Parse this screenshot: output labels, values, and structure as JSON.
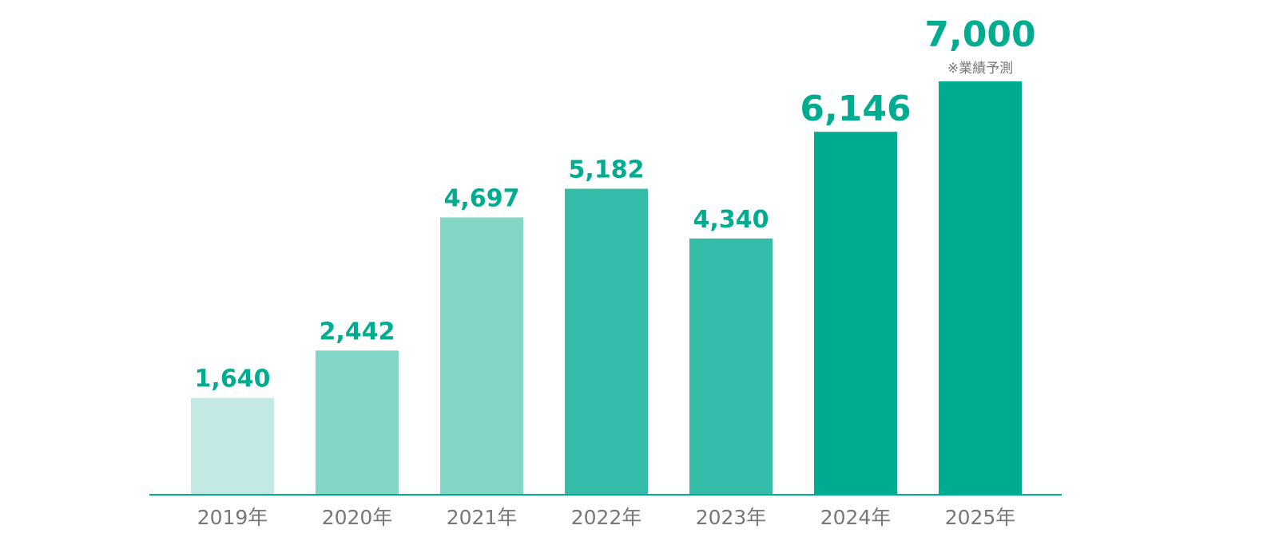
{
  "chart_data": {
    "type": "bar",
    "title": "",
    "xlabel": "",
    "ylabel": "",
    "ylim": [
      0,
      7000
    ],
    "grid": false,
    "legend": "none",
    "categories": [
      "2019年",
      "2020年",
      "2021年",
      "2022年",
      "2023年",
      "2024年",
      "2025年"
    ],
    "values": [
      1640,
      2442,
      4697,
      5182,
      4340,
      6146,
      7000
    ],
    "value_labels": [
      "1,640",
      "2,442",
      "4,697",
      "5,182",
      "4,340",
      "6,146",
      "7,000"
    ],
    "bar_colors": [
      "#c2e9e3",
      "#82d7c6",
      "#82d7c6",
      "#35bca8",
      "#35bca8",
      "#00ac90",
      "#00ac90"
    ],
    "value_label_color": "#00ac90",
    "axis_color": "#00ac90",
    "tick_label_color": "#777777",
    "annotations": [
      {
        "category": "2025年",
        "text": "※業績予測"
      }
    ]
  }
}
